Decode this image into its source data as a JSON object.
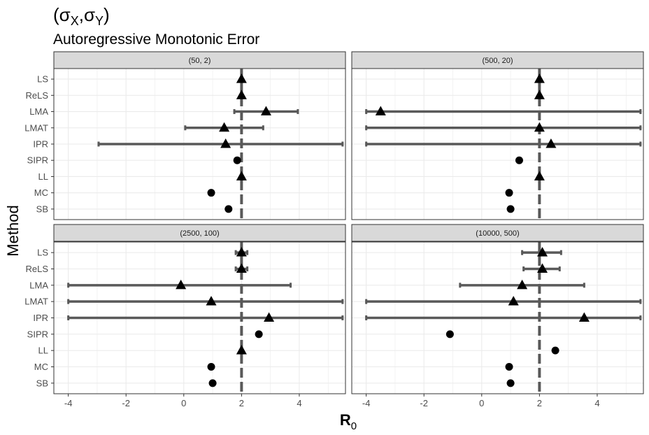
{
  "title": {
    "prefix": "(σ",
    "sub1": "X",
    "mid": ",σ",
    "sub2": "Y",
    "suffix": ")"
  },
  "subtitle": "Autoregressive Monotonic Error",
  "colors": {
    "interval": "#595959",
    "point": "#000000",
    "reference_line": "#595959",
    "strip_fill": "#d9d9d9",
    "panel_border": "#333333",
    "grid": "#ebebeb"
  },
  "chart_data": {
    "type": "scatter",
    "subtype": "point-range facet plot",
    "xlabel": "R",
    "xlabel_subscript": "0",
    "ylabel": "Method",
    "xlim": [
      -4.5,
      5.6
    ],
    "x_ticks": [
      -4,
      -2,
      0,
      2,
      4
    ],
    "reference_line_x": 2,
    "methods": [
      "LS",
      "ReLS",
      "LMA",
      "LMAT",
      "IPR",
      "SIPR",
      "LL",
      "MC",
      "SB"
    ],
    "grid": true,
    "legend": "none",
    "panels": [
      {
        "label": "(50, 2)",
        "points": [
          {
            "method": "LS",
            "x": 2.0,
            "lo": null,
            "hi": null,
            "shape": "triangle"
          },
          {
            "method": "ReLS",
            "x": 2.0,
            "lo": null,
            "hi": null,
            "shape": "triangle"
          },
          {
            "method": "LMA",
            "x": 2.85,
            "lo": 1.75,
            "hi": 3.95,
            "shape": "triangle"
          },
          {
            "method": "LMAT",
            "x": 1.4,
            "lo": 0.05,
            "hi": 2.75,
            "shape": "triangle"
          },
          {
            "method": "IPR",
            "x": 1.45,
            "lo": -2.95,
            "hi": 5.5,
            "shape": "triangle"
          },
          {
            "method": "SIPR",
            "x": 1.85,
            "lo": null,
            "hi": null,
            "shape": "circle"
          },
          {
            "method": "LL",
            "x": 2.0,
            "lo": null,
            "hi": null,
            "shape": "triangle"
          },
          {
            "method": "MC",
            "x": 0.95,
            "lo": null,
            "hi": null,
            "shape": "circle"
          },
          {
            "method": "SB",
            "x": 1.55,
            "lo": null,
            "hi": null,
            "shape": "circle"
          }
        ]
      },
      {
        "label": "(500, 20)",
        "points": [
          {
            "method": "LS",
            "x": 2.0,
            "lo": null,
            "hi": null,
            "shape": "triangle"
          },
          {
            "method": "ReLS",
            "x": 2.0,
            "lo": null,
            "hi": null,
            "shape": "triangle"
          },
          {
            "method": "LMA",
            "x": -3.5,
            "lo": -4.0,
            "hi": 5.5,
            "shape": "triangle"
          },
          {
            "method": "LMAT",
            "x": 2.0,
            "lo": -4.0,
            "hi": 5.5,
            "shape": "triangle"
          },
          {
            "method": "IPR",
            "x": 2.4,
            "lo": -4.0,
            "hi": 5.5,
            "shape": "triangle"
          },
          {
            "method": "SIPR",
            "x": 1.3,
            "lo": null,
            "hi": null,
            "shape": "circle"
          },
          {
            "method": "LL",
            "x": 2.0,
            "lo": null,
            "hi": null,
            "shape": "triangle"
          },
          {
            "method": "MC",
            "x": 0.95,
            "lo": null,
            "hi": null,
            "shape": "circle"
          },
          {
            "method": "SB",
            "x": 1.0,
            "lo": null,
            "hi": null,
            "shape": "circle"
          }
        ]
      },
      {
        "label": "(2500, 100)",
        "points": [
          {
            "method": "LS",
            "x": 2.0,
            "lo": 1.8,
            "hi": 2.2,
            "shape": "triangle"
          },
          {
            "method": "ReLS",
            "x": 2.0,
            "lo": 1.8,
            "hi": 2.2,
            "shape": "triangle"
          },
          {
            "method": "LMA",
            "x": -0.1,
            "lo": -4.0,
            "hi": 3.7,
            "shape": "triangle"
          },
          {
            "method": "LMAT",
            "x": 0.95,
            "lo": -4.0,
            "hi": 5.5,
            "shape": "triangle"
          },
          {
            "method": "IPR",
            "x": 2.95,
            "lo": -4.0,
            "hi": 5.5,
            "shape": "triangle"
          },
          {
            "method": "SIPR",
            "x": 2.6,
            "lo": null,
            "hi": null,
            "shape": "circle"
          },
          {
            "method": "LL",
            "x": 2.0,
            "lo": null,
            "hi": null,
            "shape": "triangle"
          },
          {
            "method": "MC",
            "x": 0.95,
            "lo": null,
            "hi": null,
            "shape": "circle"
          },
          {
            "method": "SB",
            "x": 1.0,
            "lo": null,
            "hi": null,
            "shape": "circle"
          }
        ]
      },
      {
        "label": "(10000, 500)",
        "points": [
          {
            "method": "LS",
            "x": 2.1,
            "lo": 1.4,
            "hi": 2.75,
            "shape": "triangle"
          },
          {
            "method": "ReLS",
            "x": 2.1,
            "lo": 1.45,
            "hi": 2.7,
            "shape": "triangle"
          },
          {
            "method": "LMA",
            "x": 1.4,
            "lo": -0.75,
            "hi": 3.55,
            "shape": "triangle"
          },
          {
            "method": "LMAT",
            "x": 1.1,
            "lo": -4.0,
            "hi": 5.5,
            "shape": "triangle"
          },
          {
            "method": "IPR",
            "x": 3.55,
            "lo": -4.0,
            "hi": 5.5,
            "shape": "triangle"
          },
          {
            "method": "SIPR",
            "x": -1.1,
            "lo": null,
            "hi": null,
            "shape": "circle"
          },
          {
            "method": "LL",
            "x": 2.55,
            "lo": null,
            "hi": null,
            "shape": "circle"
          },
          {
            "method": "MC",
            "x": 0.95,
            "lo": null,
            "hi": null,
            "shape": "circle"
          },
          {
            "method": "SB",
            "x": 1.0,
            "lo": null,
            "hi": null,
            "shape": "circle"
          }
        ]
      }
    ]
  }
}
